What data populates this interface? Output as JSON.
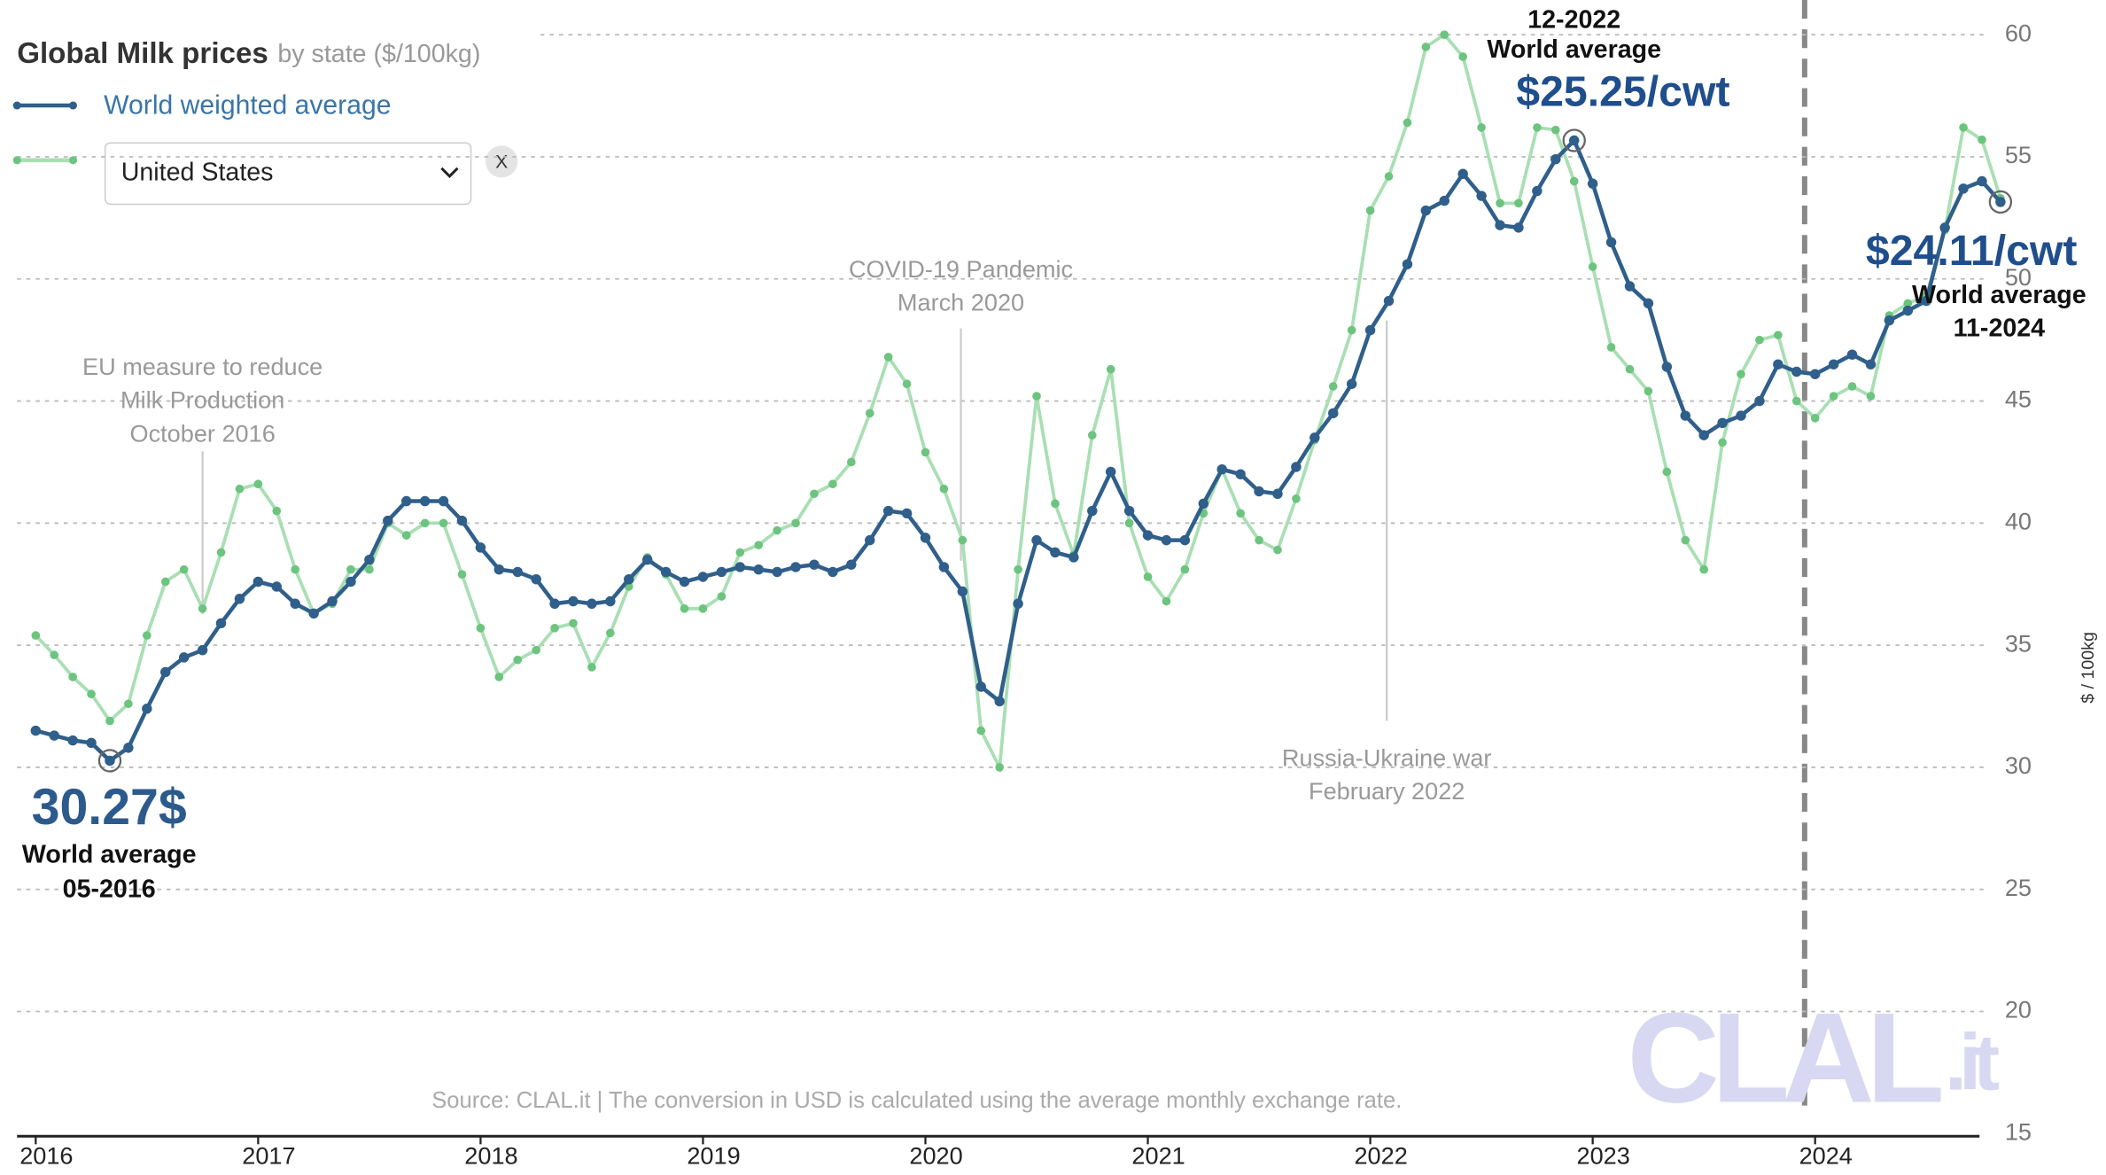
{
  "chart_data": {
    "type": "line",
    "title": "Global Milk prices",
    "subtitle": "by state ($/100kg)",
    "y_axis_label": "$ / 100kg",
    "selector": {
      "selected": "United States",
      "clear": "X"
    },
    "source": "Source: CLAL.it | The conversion in USD is calculated using the average monthly exchange rate.",
    "watermark": {
      "main": "CLAL",
      "suffix": ".it"
    },
    "x": [
      "01-2016",
      "02-2016",
      "03-2016",
      "04-2016",
      "05-2016",
      "06-2016",
      "07-2016",
      "08-2016",
      "09-2016",
      "10-2016",
      "11-2016",
      "12-2016",
      "01-2017",
      "02-2017",
      "03-2017",
      "04-2017",
      "05-2017",
      "06-2017",
      "07-2017",
      "08-2017",
      "09-2017",
      "10-2017",
      "11-2017",
      "12-2017",
      "01-2018",
      "02-2018",
      "03-2018",
      "04-2018",
      "05-2018",
      "06-2018",
      "07-2018",
      "08-2018",
      "09-2018",
      "10-2018",
      "11-2018",
      "12-2018",
      "01-2019",
      "02-2019",
      "03-2019",
      "04-2019",
      "05-2019",
      "06-2019",
      "07-2019",
      "08-2019",
      "09-2019",
      "10-2019",
      "11-2019",
      "12-2019",
      "01-2020",
      "02-2020",
      "03-2020",
      "04-2020",
      "05-2020",
      "06-2020",
      "07-2020",
      "08-2020",
      "09-2020",
      "10-2020",
      "11-2020",
      "12-2020",
      "01-2021",
      "02-2021",
      "03-2021",
      "04-2021",
      "05-2021",
      "06-2021",
      "07-2021",
      "08-2021",
      "09-2021",
      "10-2021",
      "11-2021",
      "12-2021",
      "01-2022",
      "02-2022",
      "03-2022",
      "04-2022",
      "05-2022",
      "06-2022",
      "07-2022",
      "08-2022",
      "09-2022",
      "10-2022",
      "11-2022",
      "12-2022",
      "01-2023",
      "02-2023",
      "03-2023",
      "04-2023",
      "05-2023",
      "06-2023",
      "07-2023",
      "08-2023",
      "09-2023",
      "10-2023",
      "11-2023",
      "12-2023",
      "01-2024",
      "02-2024",
      "03-2024",
      "04-2024",
      "05-2024",
      "06-2024",
      "07-2024",
      "08-2024",
      "09-2024",
      "10-2024",
      "11-2024"
    ],
    "xticks": [
      2016,
      2017,
      2018,
      2019,
      2020,
      2021,
      2022,
      2023,
      2024
    ],
    "series": [
      {
        "name": "World weighted average",
        "color": "#2f5f8a",
        "values": [
          31.5,
          31.3,
          31.1,
          31.0,
          30.27,
          30.8,
          32.4,
          33.9,
          34.5,
          34.8,
          35.9,
          36.9,
          37.6,
          37.4,
          36.7,
          36.3,
          36.8,
          37.6,
          38.5,
          40.1,
          40.9,
          40.9,
          40.9,
          40.1,
          39.0,
          38.1,
          38.0,
          37.7,
          36.7,
          36.8,
          36.7,
          36.8,
          37.7,
          38.5,
          38.0,
          37.6,
          37.8,
          38.0,
          38.2,
          38.1,
          38.0,
          38.2,
          38.3,
          38.0,
          38.3,
          39.3,
          40.5,
          40.4,
          39.4,
          38.2,
          37.2,
          33.3,
          32.7,
          36.7,
          39.3,
          38.8,
          38.6,
          40.5,
          42.1,
          40.5,
          39.5,
          39.3,
          39.3,
          40.8,
          42.2,
          42.0,
          41.3,
          41.2,
          42.3,
          43.5,
          44.5,
          45.7,
          47.9,
          49.1,
          50.6,
          52.8,
          53.2,
          54.3,
          53.4,
          52.2,
          52.1,
          53.6,
          54.9,
          55.67,
          53.9,
          51.5,
          49.7,
          49.0,
          46.4,
          44.4,
          43.6,
          44.1,
          44.4,
          45.0,
          46.5,
          46.2,
          46.1,
          46.5,
          46.9,
          46.5,
          48.3,
          48.7,
          49.1,
          52.1,
          53.7,
          54.0,
          53.15
        ]
      },
      {
        "name": "United States",
        "color": "#7fcf8f",
        "values": [
          35.4,
          34.6,
          33.7,
          33.0,
          31.9,
          32.6,
          35.4,
          37.6,
          38.1,
          36.5,
          38.8,
          41.4,
          41.6,
          40.5,
          38.1,
          36.3,
          36.7,
          38.1,
          38.1,
          40.0,
          39.5,
          40.0,
          40.0,
          37.9,
          35.7,
          33.7,
          34.4,
          34.8,
          35.7,
          35.9,
          34.1,
          35.5,
          37.4,
          38.6,
          37.9,
          36.5,
          36.5,
          37.0,
          38.8,
          39.1,
          39.7,
          40.0,
          41.2,
          41.6,
          42.5,
          44.5,
          46.8,
          45.7,
          42.9,
          41.4,
          39.3,
          31.5,
          30.0,
          38.1,
          45.2,
          40.8,
          38.7,
          43.6,
          46.3,
          40.0,
          37.8,
          36.8,
          38.1,
          40.4,
          42.2,
          40.4,
          39.3,
          38.9,
          41.0,
          43.4,
          45.6,
          47.9,
          52.8,
          54.2,
          56.4,
          59.5,
          60.0,
          59.1,
          56.2,
          53.1,
          53.1,
          56.2,
          56.1,
          54.0,
          50.5,
          47.2,
          46.3,
          45.4,
          42.1,
          39.3,
          38.1,
          43.3,
          46.1,
          47.5,
          47.7,
          45.0,
          44.3,
          45.2,
          45.6,
          45.2,
          48.5,
          49.0,
          49.3,
          52.0,
          56.2,
          55.7,
          53.3
        ]
      }
    ],
    "ylim": [
      15,
      60
    ],
    "yticks": [
      15,
      20,
      25,
      30,
      35,
      40,
      45,
      50,
      55,
      60
    ],
    "grid": true,
    "events": [
      {
        "lines": [
          "EU measure to reduce",
          "Milk Production",
          "October 2016"
        ]
      },
      {
        "lines": [
          "COVID-19 Pandemic",
          "March 2020"
        ]
      },
      {
        "lines": [
          "Russia-Ukraine war",
          "February 2022"
        ]
      }
    ],
    "highlights": [
      {
        "value_label": "30.27$",
        "caption": "World average",
        "date": "05-2016"
      },
      {
        "value_label": "$25.25/cwt",
        "caption": "World average",
        "date": "12-2022"
      },
      {
        "value_label": "$24.11/cwt",
        "caption": "World average",
        "date": "11-2024"
      }
    ]
  }
}
